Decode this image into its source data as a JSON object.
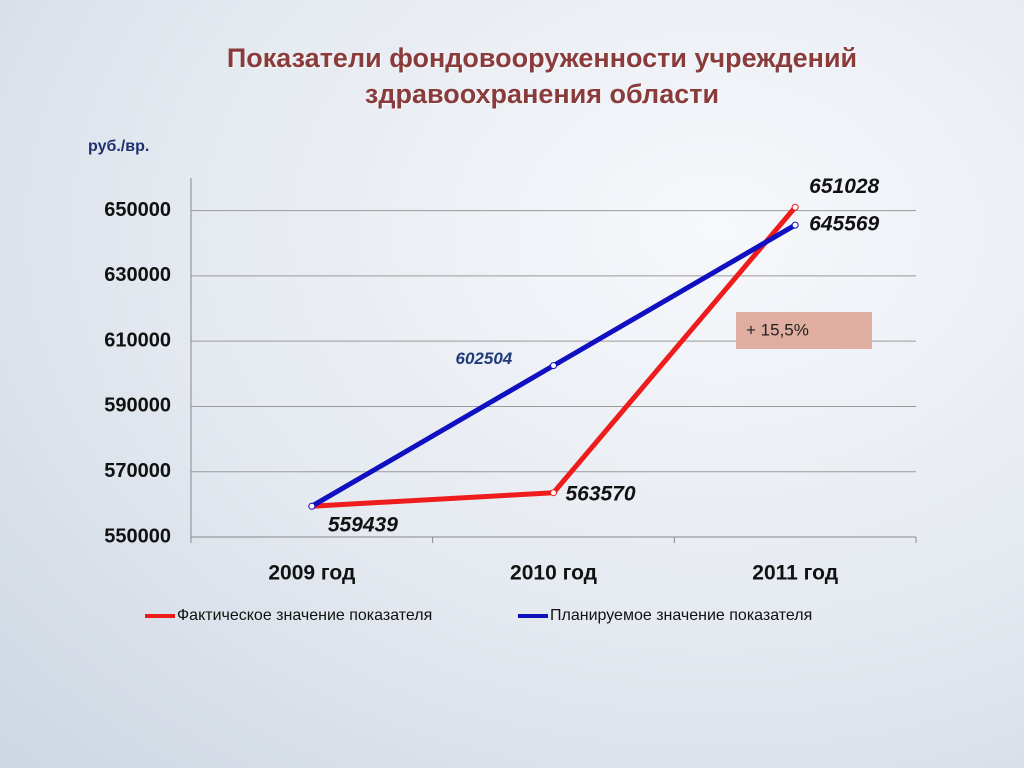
{
  "chart_data": {
    "type": "line",
    "title": "Показатели фондовооруженности учреждений здравоохранения области",
    "y_label": "руб./вр.",
    "categories": [
      "2009 год",
      "2010 год",
      "2011 год"
    ],
    "series": [
      {
        "name": "Фактическое значение показателя",
        "color": "#ee1c1c",
        "values": [
          559439,
          563570,
          651028
        ]
      },
      {
        "name": "Планируемое значение показателя",
        "color": "#1010c0",
        "values": [
          559439,
          602504,
          645569
        ]
      }
    ],
    "ylim": [
      550000,
      660000
    ],
    "yticks": [
      550000,
      570000,
      590000,
      610000,
      630000,
      650000
    ],
    "grid": true,
    "legend": "bottom",
    "annotation": "+ 15,5%"
  }
}
